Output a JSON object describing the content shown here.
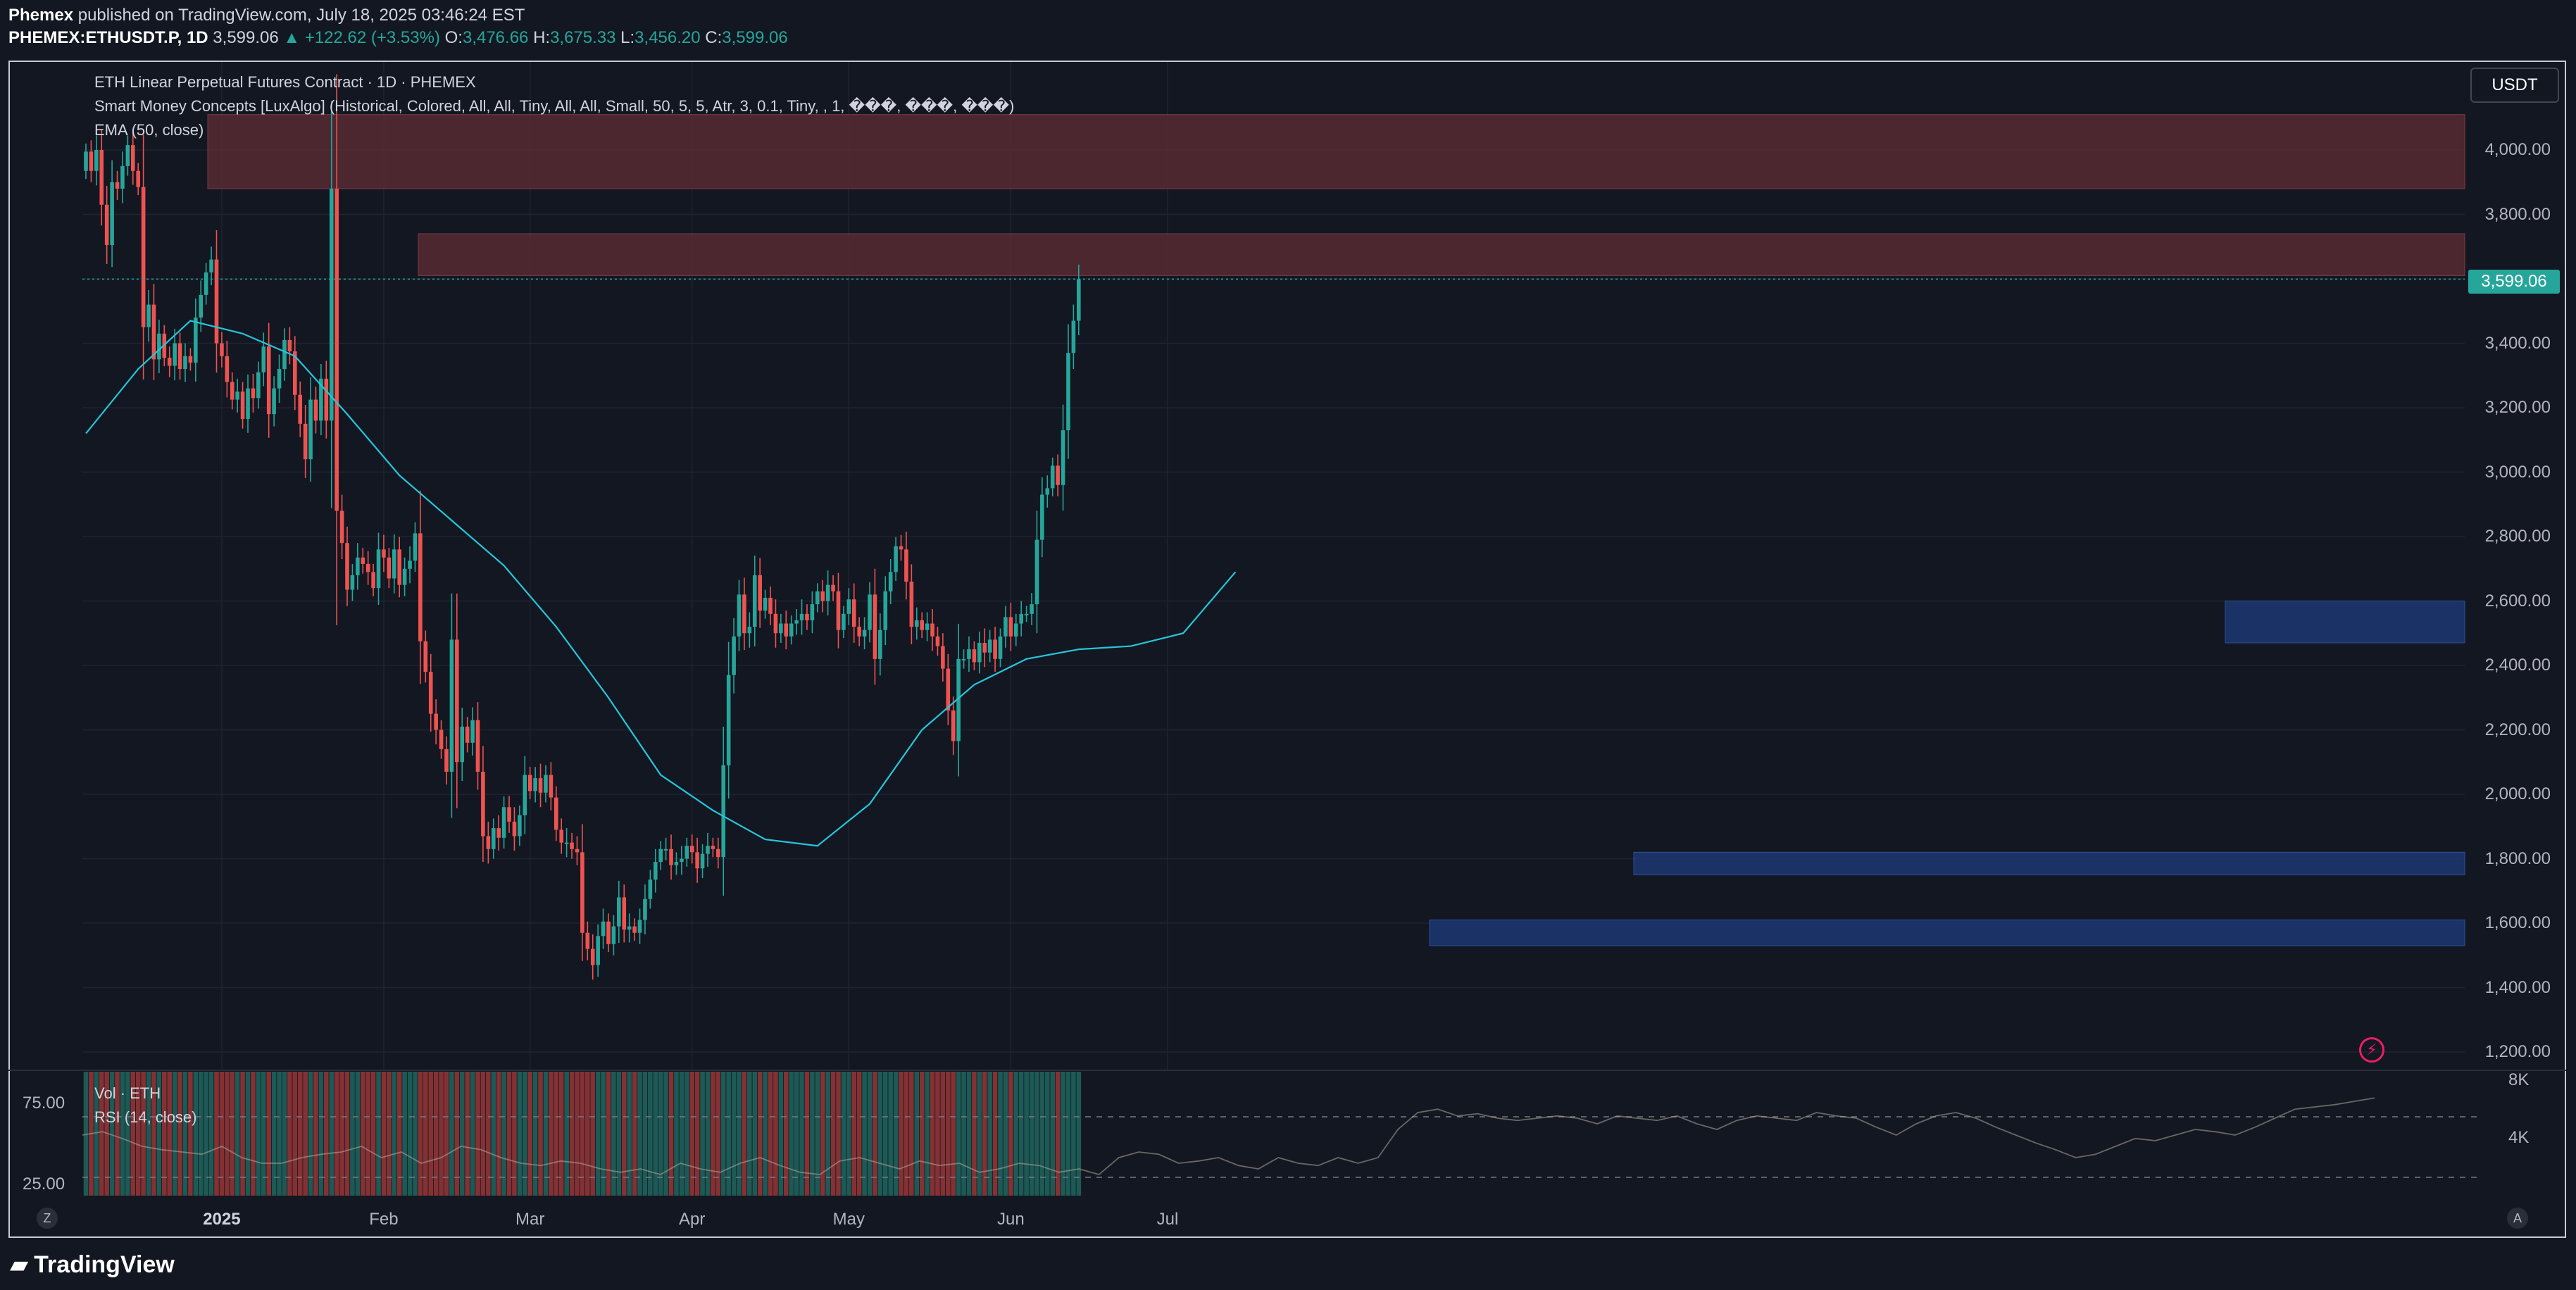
{
  "header": {
    "publisher": "Phemex",
    "published_text": "published on TradingView.com, July 18, 2025 03:46:24 EST",
    "symbol": "PHEMEX:ETHUSDT.P, 1D",
    "last": "3,599.06",
    "change": "▲ +122.62 (+3.53%)",
    "o_label": "O:",
    "o": "3,476.66",
    "h_label": "H:",
    "h": "3,675.33",
    "l_label": "L:",
    "l": "3,456.20",
    "c_label": "C:",
    "c": "3,599.06"
  },
  "legend": {
    "title": "ETH Linear Perpetual Futures Contract · 1D · PHEMEX",
    "indicator": "Smart Money Concepts [LuxAlgo] (Historical, Colored, All, All, Tiny, All, All, Small, 50, 5, 5, Atr, 3, 0.1, Tiny, , 1, ���, ���, ���)",
    "ema": "EMA (50, close)"
  },
  "currency_badge": "USDT",
  "price_tag": "3,599.06",
  "sub_legend": {
    "vol": "Vol · ETH",
    "rsi": "RSI (14, close)"
  },
  "rsi_levels": [
    "75.00",
    "25.00"
  ],
  "volume_labels": [
    "8K",
    "4K"
  ],
  "corner_left": "Z",
  "corner_right": "A",
  "brand": "TradingView",
  "colors": {
    "up": "#26a69a",
    "down": "#ef5350",
    "ema": "#26c6da",
    "supply": "#5c2b35",
    "demand": "#1e3a78",
    "bg": "#131722"
  },
  "chart_data": {
    "type": "candlestick",
    "title": "ETH Linear Perpetual Futures Contract · 1D · PHEMEX",
    "ylabel": "USDT",
    "ylim": [
      1150,
      4150
    ],
    "y_ticks": [
      1200,
      1400,
      1600,
      1800,
      2000,
      2200,
      2400,
      2600,
      2800,
      3000,
      3200,
      3400,
      3600,
      3800,
      4000
    ],
    "y_tick_labels": [
      "1,200.00",
      "1,400.00",
      "1,600.00",
      "1,800.00",
      "2,000.00",
      "2,200.00",
      "2,400.00",
      "2,600.00",
      "2,800.00",
      "3,000.00",
      "3,200.00",
      "3,400.00",
      "3,600.00",
      "3,800.00",
      "4,000.00"
    ],
    "x_tick_labels": [
      "2025",
      "Feb",
      "Mar",
      "Apr",
      "May",
      "Jun",
      "Jul"
    ],
    "x_tick_days": [
      26,
      57,
      85,
      116,
      146,
      177,
      207
    ],
    "start_date": "2024-12-06",
    "closes": [
      3995,
      3935,
      4000,
      3830,
      3705,
      3900,
      3880,
      3950,
      4015,
      3935,
      3885,
      3450,
      3520,
      3350,
      3430,
      3355,
      3330,
      3400,
      3320,
      3360,
      3340,
      3480,
      3550,
      3620,
      3660,
      3400,
      3360,
      3280,
      3225,
      3250,
      3165,
      3260,
      3230,
      3310,
      3390,
      3180,
      3260,
      3320,
      3410,
      3375,
      3240,
      3150,
      3040,
      3225,
      3160,
      3290,
      3160,
      3880,
      2880,
      2780,
      2635,
      2680,
      2735,
      2715,
      2690,
      2640,
      2760,
      2735,
      2670,
      2760,
      2650,
      2700,
      2725,
      2810,
      2475,
      2380,
      2250,
      2200,
      2140,
      2070,
      2480,
      2100,
      2210,
      2160,
      2230,
      2070,
      1870,
      1830,
      1895,
      1865,
      1960,
      1915,
      1870,
      1935,
      2060,
      2010,
      2050,
      2005,
      2060,
      1990,
      1890,
      1850,
      1850,
      1830,
      1820,
      1570,
      1520,
      1470,
      1560,
      1605,
      1535,
      1590,
      1680,
      1580,
      1590,
      1570,
      1610,
      1675,
      1735,
      1790,
      1830,
      1830,
      1780,
      1790,
      1800,
      1840,
      1820,
      1770,
      1815,
      1840,
      1830,
      1805,
      2090,
      2370,
      2490,
      2620,
      2500,
      2520,
      2680,
      2570,
      2610,
      2560,
      2500,
      2530,
      2490,
      2530,
      2540,
      2560,
      2540,
      2590,
      2630,
      2600,
      2650,
      2630,
      2510,
      2560,
      2605,
      2520,
      2490,
      2510,
      2620,
      2420,
      2510,
      2630,
      2690,
      2770,
      2760,
      2660,
      2520,
      2540,
      2510,
      2530,
      2490,
      2460,
      2390,
      2260,
      2165,
      2420,
      2420,
      2450,
      2410,
      2470,
      2440,
      2480,
      2420,
      2490,
      2550,
      2490,
      2530,
      2560,
      2560,
      2590,
      2790,
      2930,
      2950,
      3020,
      2960,
      3130,
      3370,
      3470,
      3599
    ],
    "ema50_days": [
      0,
      10,
      20,
      30,
      40,
      50,
      60,
      70,
      80,
      90,
      100,
      110,
      120,
      130,
      140,
      150,
      160,
      170,
      180,
      190,
      200,
      210,
      220
    ],
    "ema50_values": [
      3120,
      3320,
      3470,
      3430,
      3360,
      3180,
      2990,
      2850,
      2710,
      2520,
      2300,
      2060,
      1950,
      1860,
      1840,
      1970,
      2200,
      2340,
      2420,
      2450,
      2460,
      2500,
      2690
    ],
    "supply_zones": [
      [
        3880,
        4110
      ],
      [
        3610,
        3740
      ]
    ],
    "demand_zones": [
      [
        2470,
        2600
      ],
      [
        1750,
        1820
      ],
      [
        1530,
        1610
      ]
    ],
    "last_price": 3599.06,
    "rsi_pct": [
      55,
      58,
      52,
      45,
      42,
      40,
      38,
      45,
      35,
      30,
      30,
      35,
      38,
      40,
      45,
      35,
      40,
      30,
      35,
      45,
      42,
      35,
      30,
      28,
      32,
      30,
      25,
      22,
      25,
      20,
      30,
      25,
      22,
      30,
      35,
      28,
      22,
      20,
      32,
      35,
      30,
      25,
      32,
      28,
      30,
      22,
      25,
      30,
      28,
      22,
      25,
      20,
      35,
      40,
      38,
      30,
      32,
      35,
      28,
      25,
      35,
      30,
      28,
      35,
      30,
      35,
      60,
      75,
      78,
      72,
      74,
      70,
      68,
      70,
      72,
      70,
      65,
      72,
      70,
      68,
      72,
      65,
      60,
      68,
      72,
      70,
      68,
      75,
      72,
      70,
      62,
      55,
      65,
      72,
      75,
      70,
      62,
      55,
      48,
      42,
      35,
      38,
      45,
      52,
      50,
      55,
      60,
      58,
      55,
      62,
      70,
      78,
      80,
      82,
      85,
      88
    ]
  }
}
